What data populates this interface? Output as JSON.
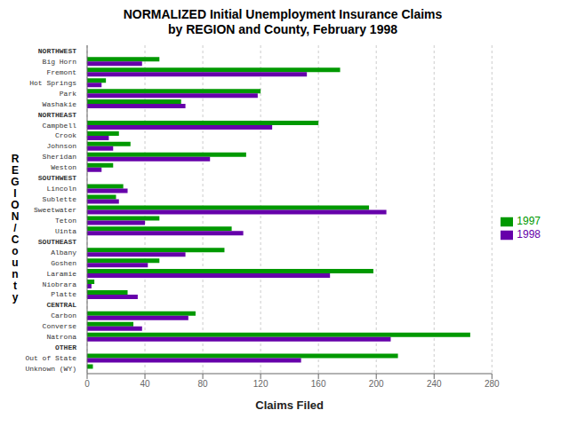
{
  "chart_data": {
    "type": "bar",
    "orientation": "horizontal",
    "title": "NORMALIZED Initial Unemployment Insurance Claims\nby REGION and County, February 1998",
    "xlabel": "Claims Filed",
    "ylabel": "R\nE\nG\nI\nO\nN\n/\nC\no\nu\nn\nt\ny",
    "categories": [
      "NORTHWEST",
      "Big Horn",
      "Fremont",
      "Hot Springs",
      "Park",
      "Washakie",
      "NORTHEAST",
      "Campbell",
      "Crook",
      "Johnson",
      "Sheridan",
      "Weston",
      "SOUTHWEST",
      "Lincoln",
      "Sublette",
      "Sweetwater",
      "Teton",
      "Uinta",
      "SOUTHEAST",
      "Albany",
      "Goshen",
      "Laramie",
      "Niobrara",
      "Platte",
      "CENTRAL",
      "Carbon",
      "Converse",
      "Natrona",
      "OTHER",
      "Out of State",
      "Unknown (WY)"
    ],
    "series": [
      {
        "name": "1997",
        "color": "#009900",
        "values": [
          0,
          50,
          175,
          13,
          120,
          65,
          0,
          160,
          22,
          30,
          110,
          18,
          0,
          25,
          20,
          195,
          50,
          100,
          0,
          95,
          50,
          198,
          5,
          28,
          0,
          75,
          32,
          265,
          0,
          215,
          4
        ]
      },
      {
        "name": "1998",
        "color": "#6600AA",
        "values": [
          0,
          38,
          152,
          10,
          118,
          68,
          0,
          128,
          15,
          18,
          85,
          10,
          0,
          28,
          22,
          207,
          40,
          108,
          0,
          68,
          42,
          168,
          3,
          35,
          0,
          70,
          38,
          210,
          0,
          148,
          0
        ]
      }
    ],
    "xlim": [
      0,
      280
    ],
    "xticks": [
      0,
      40,
      80,
      120,
      160,
      200,
      240,
      280
    ],
    "grid": true,
    "legend": "right"
  }
}
